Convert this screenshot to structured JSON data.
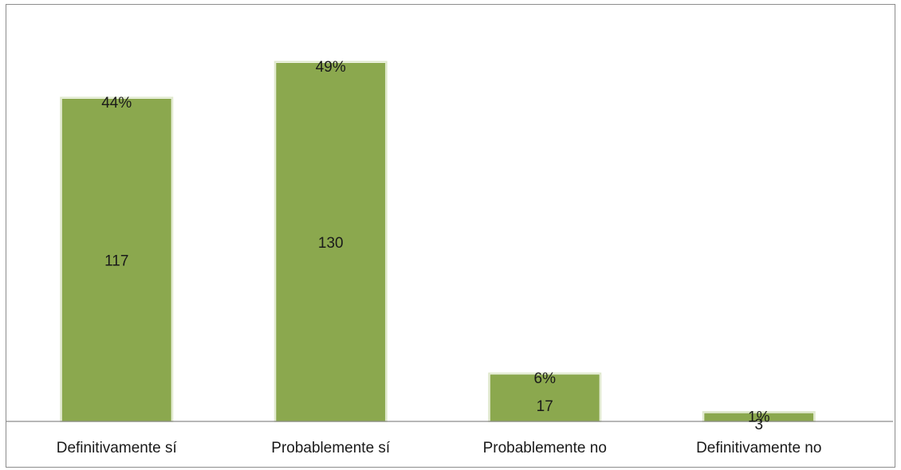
{
  "chart_data": {
    "type": "bar",
    "title": "",
    "xlabel": "",
    "ylabel": "",
    "categories": [
      "Definitivamente sí",
      "Probablemente sí",
      "Probablemente no",
      "Definitivamente no"
    ],
    "values": [
      117,
      130,
      17,
      3
    ],
    "percent_labels": [
      "44%",
      "49%",
      "6%",
      "1%"
    ],
    "ylim": [
      0,
      130
    ],
    "grid": false,
    "legend": "none",
    "colors": {
      "bar": "#8ba84e",
      "axis": "#8c8c8c"
    }
  }
}
